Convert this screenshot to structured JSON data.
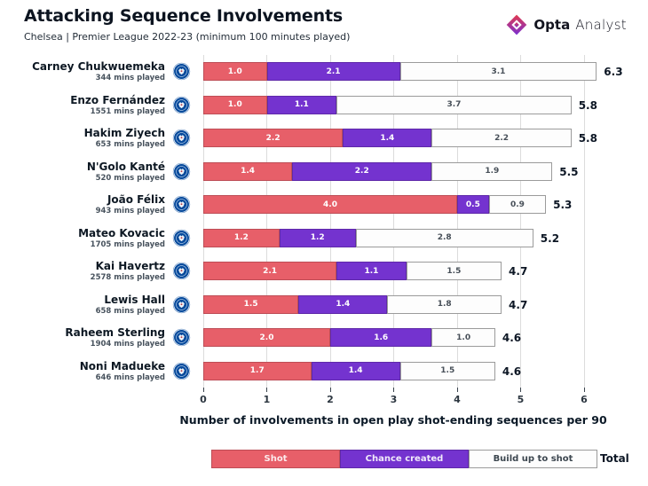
{
  "header": {
    "title": "Attacking Sequence Involvements",
    "subtitle": "Chelsea | Premier League 2022-23 (minimum 100 minutes played)",
    "brand": {
      "bold": "Opta",
      "light": "Analyst"
    }
  },
  "chart_data": {
    "type": "bar",
    "orientation": "horizontal",
    "stacked": true,
    "title": "Attacking Sequence Involvements",
    "subtitle": "Chelsea | Premier League 2022-23 (minimum 100 minutes played)",
    "xlabel": "Number of involvements in open play shot-ending sequences per 90",
    "xlim": [
      0,
      6
    ],
    "ticks": [
      0,
      1,
      2,
      3,
      4,
      5,
      6
    ],
    "grid": true,
    "colors": {
      "shot": "#e75f69",
      "chance_created": "#7433cf",
      "build_up": "#fdfdfd"
    },
    "legend": [
      {
        "label": "Shot",
        "color": "#e75f69"
      },
      {
        "label": "Chance created",
        "color": "#7433cf"
      },
      {
        "label": "Build up to shot",
        "color": "#fdfdfd"
      }
    ],
    "total_label": "Total",
    "players": [
      {
        "name": "Carney Chukwuemeka",
        "mins": "344 mins played",
        "shot": 1.0,
        "chance_created": 2.1,
        "build_up": 3.1,
        "total": "6.3"
      },
      {
        "name": "Enzo Fernández",
        "mins": "1551 mins played",
        "shot": 1.0,
        "chance_created": 1.1,
        "build_up": 3.7,
        "total": "5.8"
      },
      {
        "name": "Hakim Ziyech",
        "mins": "653 mins played",
        "shot": 2.2,
        "chance_created": 1.4,
        "build_up": 2.2,
        "total": "5.8"
      },
      {
        "name": "N'Golo Kanté",
        "mins": "520 mins played",
        "shot": 1.4,
        "chance_created": 2.2,
        "build_up": 1.9,
        "total": "5.5"
      },
      {
        "name": "João Félix",
        "mins": "943 mins played",
        "shot": 4.0,
        "chance_created": 0.5,
        "build_up": 0.9,
        "total": "5.3"
      },
      {
        "name": "Mateo Kovacic",
        "mins": "1705 mins played",
        "shot": 1.2,
        "chance_created": 1.2,
        "build_up": 2.8,
        "total": "5.2"
      },
      {
        "name": "Kai Havertz",
        "mins": "2578 mins played",
        "shot": 2.1,
        "chance_created": 1.1,
        "build_up": 1.5,
        "total": "4.7"
      },
      {
        "name": "Lewis Hall",
        "mins": "658 mins played",
        "shot": 1.5,
        "chance_created": 1.4,
        "build_up": 1.8,
        "total": "4.7"
      },
      {
        "name": "Raheem Sterling",
        "mins": "1904 mins played",
        "shot": 2.0,
        "chance_created": 1.6,
        "build_up": 1.0,
        "total": "4.6"
      },
      {
        "name": "Noni Madueke",
        "mins": "646 mins played",
        "shot": 1.7,
        "chance_created": 1.4,
        "build_up": 1.5,
        "total": "4.6"
      }
    ]
  }
}
